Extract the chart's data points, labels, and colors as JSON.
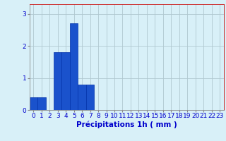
{
  "values": [
    0.4,
    0.4,
    0.0,
    1.8,
    1.8,
    2.7,
    0.8,
    0.8,
    0.0,
    0.0,
    0.0,
    0.0,
    0.0,
    0.0,
    0.0,
    0.0,
    0.0,
    0.0,
    0.0,
    0.0,
    0.0,
    0.0,
    0.0,
    0.0
  ],
  "categories": [
    0,
    1,
    2,
    3,
    4,
    5,
    6,
    7,
    8,
    9,
    10,
    11,
    12,
    13,
    14,
    15,
    16,
    17,
    18,
    19,
    20,
    21,
    22,
    23
  ],
  "bar_color": "#1a52cc",
  "bar_edge_color": "#0030aa",
  "background_color": "#d8f0f8",
  "grid_color": "#b0c8d0",
  "xlabel": "Précipitations 1h ( mm )",
  "xlabel_color": "#0000cc",
  "tick_color": "#0000cc",
  "ylim": [
    0,
    3.3
  ],
  "yticks": [
    0,
    1,
    2,
    3
  ],
  "tick_fontsize": 6.5,
  "xlabel_fontsize": 7.5
}
